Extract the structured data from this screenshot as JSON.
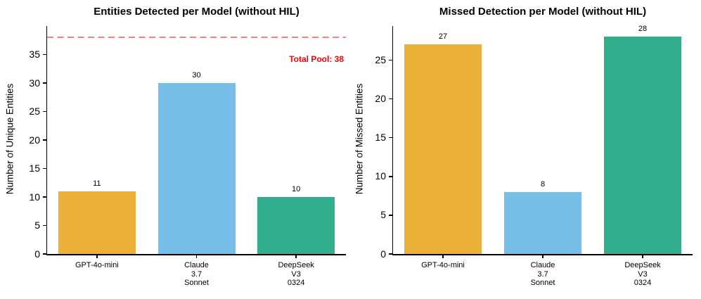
{
  "figure": {
    "background": "#ffffff",
    "axis_color": "#000000",
    "text_color": "#000000"
  },
  "chart_data": [
    {
      "type": "bar",
      "title": "Entities Detected per Model (without HIL)",
      "ylabel": "Number of Unique Entities",
      "xlabel": "",
      "categories": [
        "GPT-4o-mini",
        "Claude\n3.7\nSonnet",
        "DeepSeek\nV3\n0324"
      ],
      "values": [
        11,
        30,
        10
      ],
      "bar_colors": [
        "#EAB038",
        "#77BFE8",
        "#33AE8C"
      ],
      "yticks": [
        0,
        5,
        10,
        15,
        20,
        25,
        30,
        35
      ],
      "ylim": [
        0,
        40
      ],
      "grid": false,
      "legend": null,
      "hline": {
        "y": 38,
        "style": "dashed",
        "color": "#F47F7F"
      },
      "annotation": {
        "text": "Total Pool: 38",
        "color": "#FF0000"
      }
    },
    {
      "type": "bar",
      "title": "Missed Detection per Model (without HIL)",
      "ylabel": "Number of Missed Entities",
      "xlabel": "",
      "categories": [
        "GPT-4o-mini",
        "Claude\n3.7\nSonnet",
        "DeepSeek\nV3\n0324"
      ],
      "values": [
        27,
        8,
        28
      ],
      "bar_colors": [
        "#EAB038",
        "#77BFE8",
        "#33AE8C"
      ],
      "yticks": [
        0,
        5,
        10,
        15,
        20,
        25
      ],
      "ylim": [
        0,
        29.4
      ],
      "grid": false,
      "legend": null,
      "hline": null,
      "annotation": null
    }
  ]
}
